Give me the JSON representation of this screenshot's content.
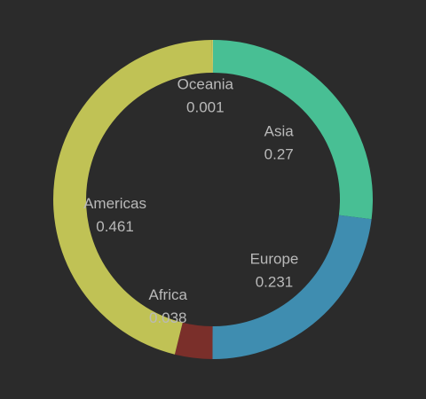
{
  "chart_data": {
    "type": "pie",
    "variant": "donut",
    "title": "",
    "slices": [
      {
        "name": "Asia",
        "value": 0.27,
        "color": "#48bf94"
      },
      {
        "name": "Europe",
        "value": 0.231,
        "color": "#3f8db0"
      },
      {
        "name": "Africa",
        "value": 0.038,
        "color": "#7a2f2a"
      },
      {
        "name": "Americas",
        "value": 0.461,
        "color": "#c0c255"
      },
      {
        "name": "Oceania",
        "value": 0.001,
        "color": "#c8c86a"
      }
    ],
    "background": "#2b2b2b",
    "label_color": "#b9b9b9",
    "legend": "none"
  }
}
